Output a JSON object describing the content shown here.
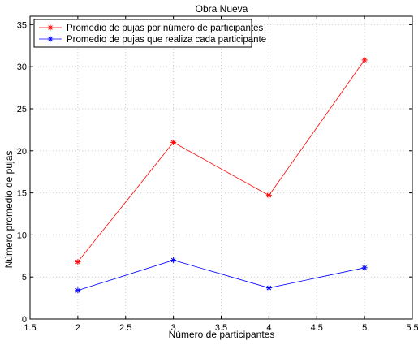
{
  "chart_data": {
    "type": "line",
    "title": "Obra Nueva",
    "xlabel": "Número de participantes",
    "ylabel": "Número promedio de pujas",
    "xlim": [
      1.5,
      5.5
    ],
    "ylim": [
      0,
      36
    ],
    "xticks": [
      "1.5",
      "2",
      "2.5",
      "3",
      "3.5",
      "4",
      "4.5",
      "5",
      "5.5"
    ],
    "yticks": [
      "0",
      "5",
      "10",
      "15",
      "20",
      "25",
      "30",
      "35"
    ],
    "grid": true,
    "legend_position": "top-left",
    "x": [
      2,
      3,
      4,
      5
    ],
    "series": [
      {
        "name": "Promedio de pujas por número de participantes",
        "color": "#ff0000",
        "marker": "*",
        "values": [
          6.8,
          21.0,
          14.7,
          30.8
        ]
      },
      {
        "name": "Promedio de pujas que realiza cada participante",
        "color": "#0000ff",
        "marker": "*",
        "values": [
          3.4,
          7.0,
          3.7,
          6.1
        ]
      }
    ]
  }
}
